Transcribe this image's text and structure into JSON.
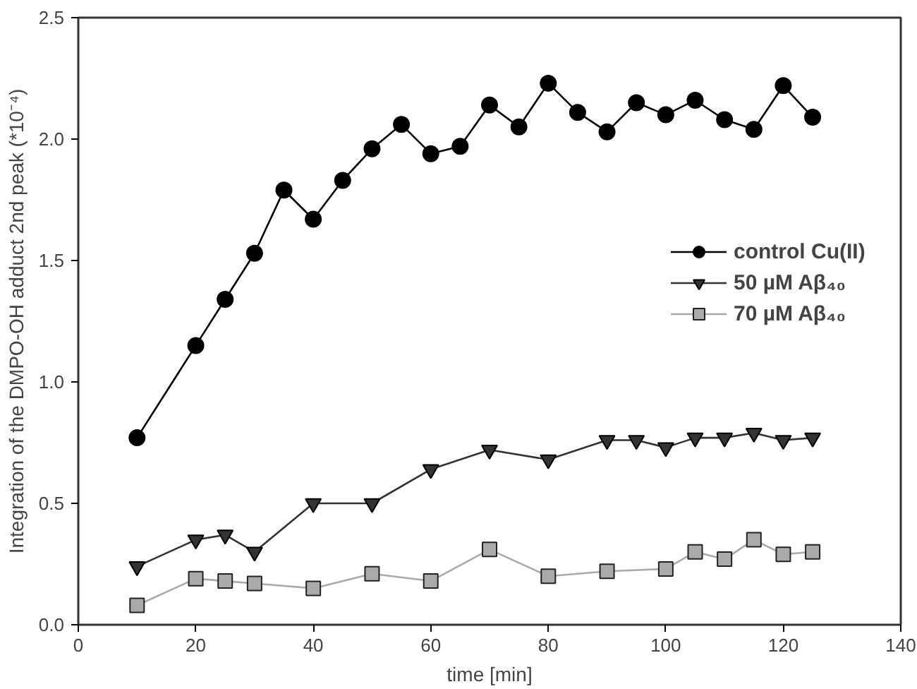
{
  "chart_data": {
    "type": "line",
    "xlabel": "time [min]",
    "ylabel": "Integration of the DMPO-OH adduct 2nd peak (*10⁻⁴)",
    "xlim": [
      0,
      140
    ],
    "xticks": [
      0,
      20,
      40,
      60,
      80,
      100,
      120,
      140
    ],
    "ylim": [
      0,
      2.5
    ],
    "yticks": [
      {
        "value": 0,
        "label": "0.0"
      },
      {
        "value": 0.5,
        "label": "0.5"
      },
      {
        "value": 1,
        "label": "1.0"
      },
      {
        "value": 1.5,
        "label": "1.5"
      },
      {
        "value": 2,
        "label": "2.0"
      },
      {
        "value": 2.5,
        "label": "2.5"
      }
    ],
    "grid": false,
    "legend": "right",
    "line_style": "solid",
    "series": [
      {
        "name": "control Cu(II)",
        "color": "#000000",
        "marker": "circle",
        "x": [
          10,
          20,
          25,
          30,
          35,
          40,
          45,
          50,
          55,
          60,
          65,
          70,
          75,
          80,
          85,
          90,
          95,
          100,
          105,
          110,
          115,
          120,
          125
        ],
        "values": [
          0.77,
          1.15,
          1.34,
          1.53,
          1.79,
          1.67,
          1.83,
          1.96,
          2.06,
          1.94,
          1.97,
          2.14,
          2.05,
          2.23,
          2.11,
          2.03,
          2.15,
          2.1,
          2.16,
          2.08,
          2.04,
          2.22,
          2.09
        ]
      },
      {
        "name": "50 µM Aβ₄₀",
        "color": "#333333",
        "marker": "triangle",
        "x": [
          10,
          20,
          25,
          30,
          40,
          50,
          60,
          70,
          80,
          90,
          95,
          100,
          105,
          110,
          115,
          120,
          125
        ],
        "values": [
          0.24,
          0.35,
          0.37,
          0.3,
          0.5,
          0.5,
          0.64,
          0.72,
          0.68,
          0.76,
          0.76,
          0.73,
          0.77,
          0.77,
          0.79,
          0.76,
          0.77
        ]
      },
      {
        "name": "70 µM Aβ₄₀",
        "color": "#aaaaaa",
        "marker": "square",
        "x": [
          10,
          20,
          25,
          30,
          40,
          50,
          60,
          70,
          80,
          90,
          100,
          105,
          110,
          115,
          120,
          125
        ],
        "values": [
          0.08,
          0.19,
          0.18,
          0.17,
          0.15,
          0.21,
          0.18,
          0.31,
          0.2,
          0.22,
          0.23,
          0.3,
          0.27,
          0.35,
          0.29,
          0.3
        ]
      }
    ]
  }
}
